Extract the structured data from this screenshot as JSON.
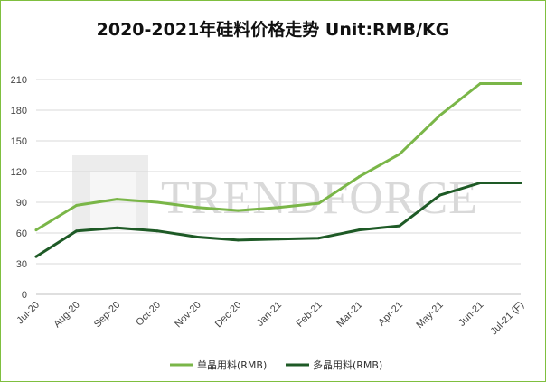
{
  "chart_data": {
    "type": "line",
    "title": "2020-2021年硅料价格走势 Unit:RMB/KG",
    "watermark": "TRENDFORCE",
    "categories": [
      "Jul-20",
      "Aug-20",
      "Sep-20",
      "Oct-20",
      "Nov-20",
      "Dec-20",
      "Jan-21",
      "Feb-21",
      "Mar-21",
      "Apr-21",
      "May-21",
      "Jun-21",
      "Jul-21 (F)"
    ],
    "series": [
      {
        "name": "单晶用料(RMB)",
        "color": "#7ab648",
        "values": [
          63,
          87,
          93,
          90,
          85,
          82,
          85,
          89,
          115,
          137,
          175,
          206,
          206
        ]
      },
      {
        "name": "多晶用料(RMB)",
        "color": "#1e5a26",
        "values": [
          37,
          62,
          65,
          62,
          56,
          53,
          54,
          55,
          63,
          67,
          97,
          109,
          109
        ]
      }
    ],
    "yticks": [
      0,
      30,
      60,
      90,
      120,
      150,
      180,
      210
    ],
    "ylim": [
      0,
      210
    ],
    "grid": true,
    "legend_position": "bottom"
  }
}
